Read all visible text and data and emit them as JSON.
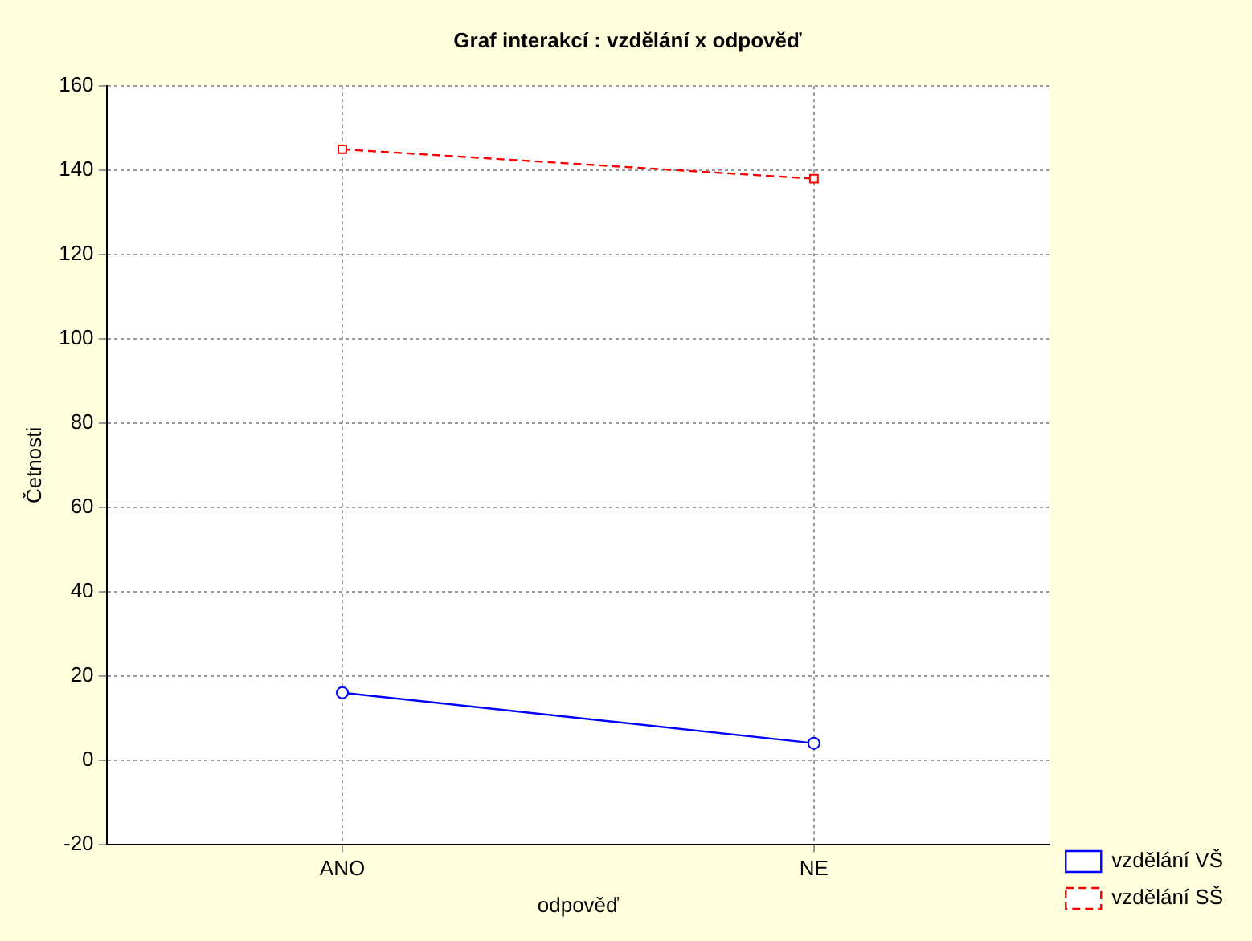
{
  "chart_data": {
    "type": "line",
    "title": "Graf interakcí : vzdělání x odpověď",
    "xlabel": "odpověď",
    "ylabel": "Četnosti",
    "categories": [
      "ANO",
      "NE"
    ],
    "series": [
      {
        "name": "vzdělání VŠ",
        "color": "#0000ff",
        "values": [
          16,
          4
        ],
        "marker": "circle",
        "line_style": "solid"
      },
      {
        "name": "vzdělání SŠ",
        "color": "#ff0000",
        "values": [
          145,
          138
        ],
        "marker": "square",
        "line_style": "dashed"
      }
    ],
    "ylim": [
      -20,
      160
    ],
    "yticks": [
      -20,
      0,
      20,
      40,
      60,
      80,
      100,
      120,
      140,
      160
    ],
    "grid": true,
    "legend": "bottom right"
  }
}
